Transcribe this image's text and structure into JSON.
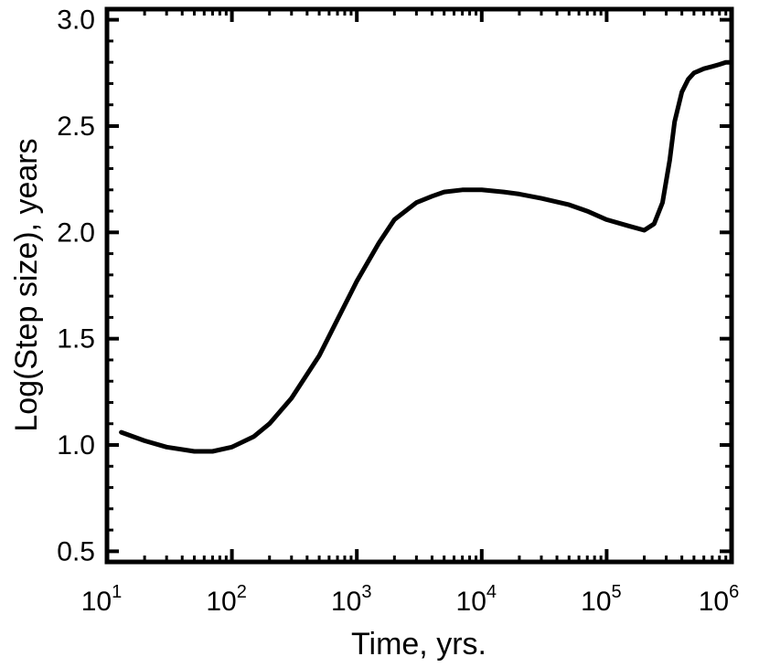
{
  "chart_data": {
    "type": "line",
    "title": "",
    "xlabel": "Time, yrs.",
    "ylabel": "Log(Step size), years",
    "xscale": "log",
    "xlim": [
      10,
      1000000
    ],
    "ylim": [
      0.45,
      3.05
    ],
    "grid": false,
    "legend": "none",
    "x_ticks": [
      {
        "base": "10",
        "exp": "1",
        "value": 10
      },
      {
        "base": "10",
        "exp": "2",
        "value": 100
      },
      {
        "base": "10",
        "exp": "3",
        "value": 1000
      },
      {
        "base": "10",
        "exp": "4",
        "value": 10000
      },
      {
        "base": "10",
        "exp": "5",
        "value": 100000
      },
      {
        "base": "10",
        "exp": "6",
        "value": 1000000
      }
    ],
    "y_ticks": [
      {
        "label": "0.5",
        "value": 0.5
      },
      {
        "label": "1.0",
        "value": 1.0
      },
      {
        "label": "1.5",
        "value": 1.5
      },
      {
        "label": "2.0",
        "value": 2.0
      },
      {
        "label": "2.5",
        "value": 2.5
      },
      {
        "label": "3.0",
        "value": 3.0
      }
    ],
    "series": [
      {
        "color": "#000000",
        "x": [
          13,
          20,
          30,
          50,
          70,
          100,
          150,
          200,
          300,
          500,
          700,
          1000,
          1500,
          2000,
          3000,
          4000,
          5000,
          7000,
          10000,
          15000,
          20000,
          30000,
          50000,
          70000,
          100000,
          150000,
          200000,
          240000,
          280000,
          320000,
          350000,
          400000,
          450000,
          500000,
          600000,
          700000,
          800000,
          900000,
          1000000
        ],
        "y": [
          1.06,
          1.02,
          0.99,
          0.97,
          0.97,
          0.99,
          1.04,
          1.1,
          1.22,
          1.42,
          1.59,
          1.77,
          1.95,
          2.06,
          2.14,
          2.17,
          2.19,
          2.2,
          2.2,
          2.19,
          2.18,
          2.16,
          2.13,
          2.1,
          2.06,
          2.03,
          2.01,
          2.04,
          2.14,
          2.34,
          2.52,
          2.66,
          2.72,
          2.75,
          2.77,
          2.78,
          2.79,
          2.8,
          2.8
        ]
      }
    ]
  }
}
